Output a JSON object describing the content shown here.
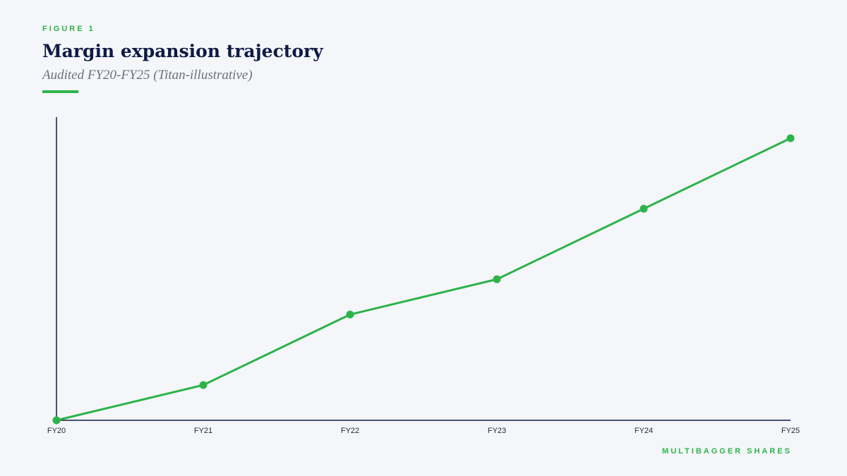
{
  "header": {
    "figure_label": "FIGURE 1",
    "title": "Margin expansion trajectory",
    "subtitle": "Audited FY20-FY25 (Titan-illustrative)"
  },
  "footer": {
    "brand": "MULTIBAGGER SHARES"
  },
  "colors": {
    "accent": "#2db34a",
    "axis": "#0f1b45",
    "background": "#f4f6f9"
  },
  "chart_data": {
    "type": "line",
    "categories": [
      "FY20",
      "FY21",
      "FY22",
      "FY23",
      "FY24",
      "FY25"
    ],
    "series": [
      {
        "values": [
          0,
          1,
          3,
          4,
          6,
          8
        ]
      }
    ],
    "ylim": [
      0,
      8.6
    ],
    "grid": false,
    "legend": "none"
  }
}
